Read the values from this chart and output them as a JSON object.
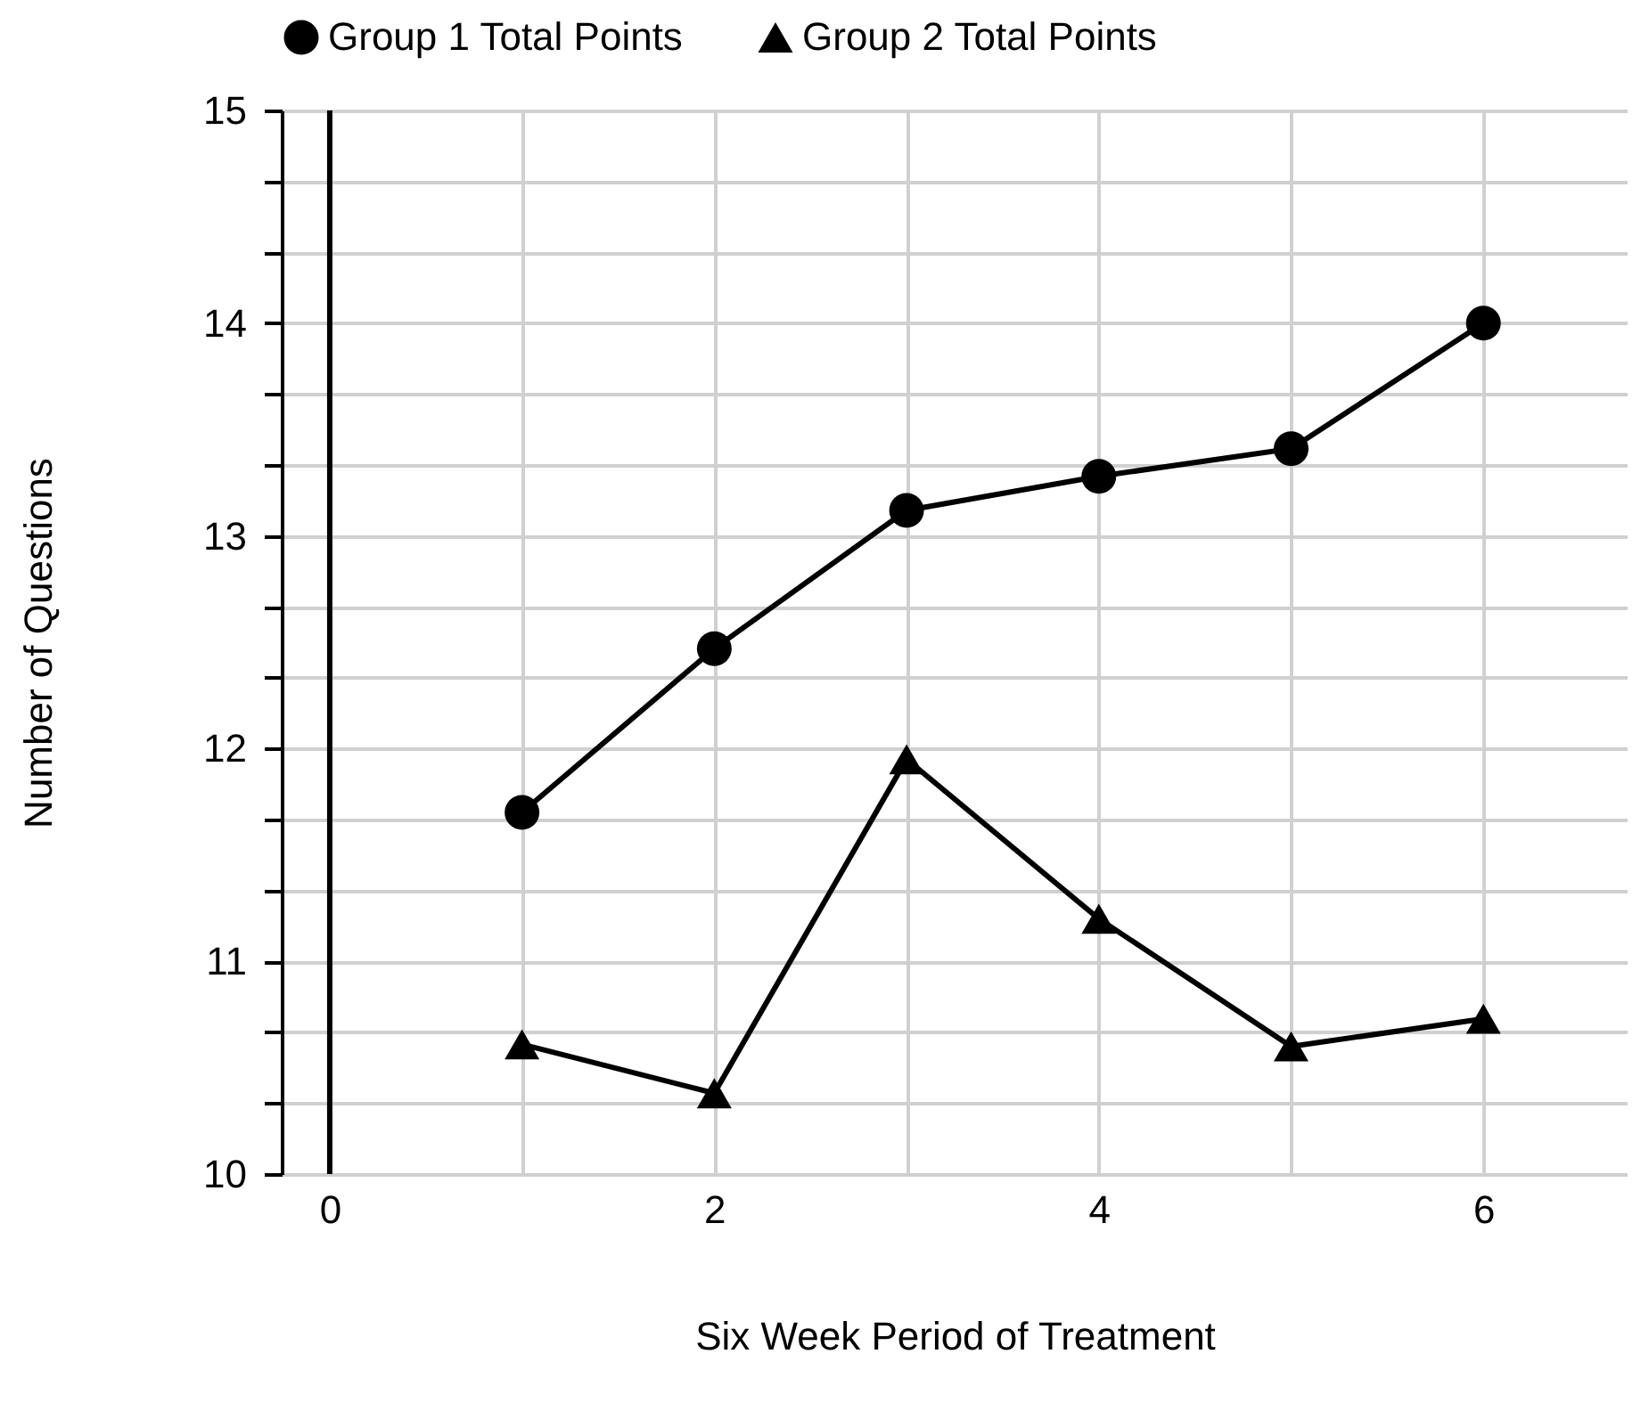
{
  "chart_data": {
    "type": "line",
    "xlabel": "Six Week Period of Treatment",
    "ylabel": "Number of Questions",
    "x": [
      1,
      2,
      3,
      4,
      5,
      6
    ],
    "series": [
      {
        "name": "Group 1 Total Points",
        "color": "#000000",
        "marker": "circle",
        "values": [
          11.7,
          12.47,
          13.12,
          13.28,
          13.41,
          14.0
        ]
      },
      {
        "name": "Group 2 Total Points",
        "color": "#000000",
        "marker": "triangle",
        "values": [
          10.61,
          10.38,
          11.95,
          11.2,
          10.6,
          10.73
        ]
      }
    ],
    "xlim": [
      -0.25,
      6.75
    ],
    "xticks": [
      0,
      {
        "value": 1,
        "label": null
      },
      2,
      {
        "value": 3,
        "label": null
      },
      4,
      {
        "value": 5,
        "label": null
      },
      6
    ],
    "ylim": [
      10,
      15
    ],
    "yticks": [
      10,
      {
        "value": 10.333,
        "label": null
      },
      {
        "value": 10.667,
        "label": null
      },
      11,
      {
        "value": 11.333,
        "label": null
      },
      {
        "value": 11.667,
        "label": null
      },
      12,
      {
        "value": 12.333,
        "label": null
      },
      {
        "value": 12.667,
        "label": null
      },
      13,
      {
        "value": 13.333,
        "label": null
      },
      {
        "value": 13.667,
        "label": null
      },
      14,
      {
        "value": 14.333,
        "label": null
      },
      {
        "value": 14.667,
        "label": null
      },
      15
    ],
    "ref_lines": [
      {
        "axis": "x",
        "value": 0,
        "color": "#000000"
      }
    ],
    "grid": true,
    "legend": "top",
    "line_style": "solid"
  }
}
